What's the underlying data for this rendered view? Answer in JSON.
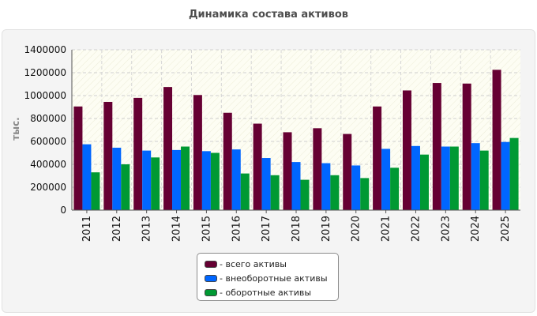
{
  "chart_data": {
    "type": "bar",
    "title": "Динамика состава активов",
    "xlabel": "",
    "ylabel": "тыс.",
    "ylim": [
      0,
      1400000
    ],
    "yticks": [
      "0",
      "200000",
      "400000",
      "600000",
      "800000",
      "1000000",
      "1200000",
      "1400000"
    ],
    "categories": [
      "2011",
      "2012",
      "2013",
      "2014",
      "2015",
      "2016",
      "2017",
      "2018",
      "2019",
      "2020",
      "2021",
      "2022",
      "2023",
      "2024",
      "2025"
    ],
    "series": [
      {
        "name": "- всего активы",
        "color": "#660033",
        "values": [
          905000,
          945000,
          980000,
          1075000,
          1005000,
          850000,
          755000,
          680000,
          715000,
          665000,
          905000,
          1045000,
          1110000,
          1105000,
          1225000
        ]
      },
      {
        "name": "- внеоборотные активы",
        "color": "#0066ff",
        "values": [
          575000,
          545000,
          520000,
          525000,
          515000,
          530000,
          455000,
          420000,
          410000,
          390000,
          535000,
          560000,
          555000,
          585000,
          595000
        ]
      },
      {
        "name": "- оборотные активы",
        "color": "#009933",
        "values": [
          330000,
          400000,
          460000,
          555000,
          500000,
          320000,
          305000,
          265000,
          305000,
          280000,
          370000,
          485000,
          555000,
          520000,
          630000
        ]
      }
    ],
    "grid": true,
    "legend_position": "bottom"
  }
}
